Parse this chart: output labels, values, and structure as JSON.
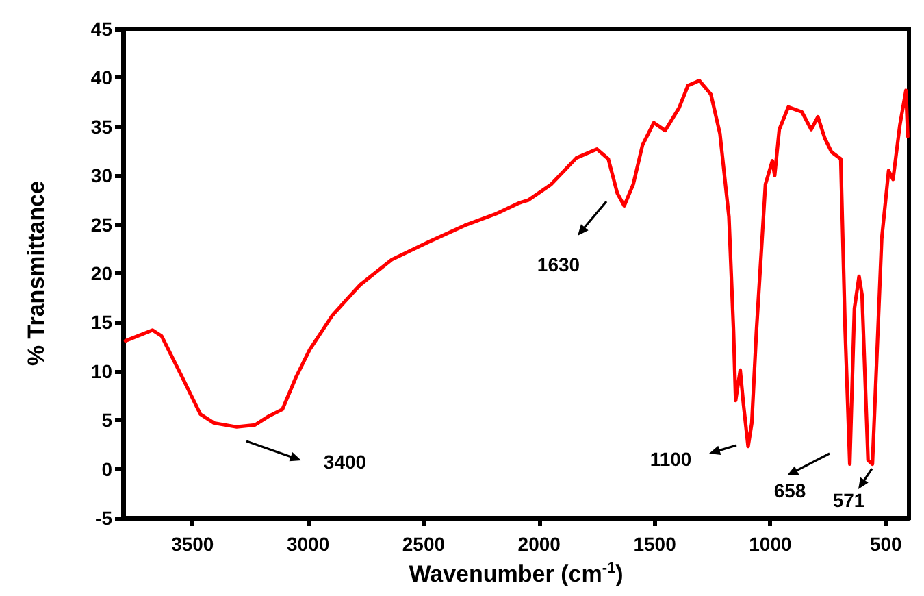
{
  "chart_data": {
    "type": "line",
    "xlabel": "Wavenumber (cm$^{-1}$)",
    "ylabel": "% Transmittance",
    "xlim": [
      3800,
      400
    ],
    "xticks": [
      3500,
      3000,
      2500,
      2000,
      1500,
      1000,
      500
    ],
    "ylim": [
      -5,
      45
    ],
    "yticks": [
      -5,
      0,
      5,
      10,
      15,
      20,
      25,
      30,
      35,
      40,
      45
    ],
    "grid": false,
    "marker": "none",
    "line_style": "solid",
    "annotations": [
      "3400",
      "1630",
      "1100",
      "658",
      "571"
    ],
    "series": [
      {
        "color": "#ff0000",
        "x": [
          3790,
          3673,
          3634,
          3545,
          3466,
          3407,
          3309,
          3230,
          3170,
          3111,
          3052,
          2993,
          2895,
          2776,
          2638,
          2480,
          2322,
          2185,
          2086,
          2046,
          1948,
          1839,
          1750,
          1701,
          1662,
          1632,
          1593,
          1553,
          1504,
          1455,
          1395,
          1356,
          1307,
          1257,
          1218,
          1179,
          1159,
          1150,
          1130,
          1116,
          1096,
          1080,
          1060,
          1021,
          991,
          981,
          961,
          922,
          863,
          823,
          794,
          764,
          735,
          695,
          676,
          656,
          636,
          616,
          603,
          577,
          558,
          518,
          488,
          469,
          439,
          413,
          405
        ],
        "values": [
          13.1,
          14.2,
          13.6,
          9.4,
          5.6,
          4.7,
          4.3,
          4.5,
          5.4,
          6.1,
          9.4,
          12.2,
          15.7,
          18.8,
          21.4,
          23.2,
          24.9,
          26.1,
          27.2,
          27.5,
          29.1,
          31.8,
          32.7,
          31.7,
          28.2,
          26.9,
          29.1,
          33.1,
          35.4,
          34.6,
          36.9,
          39.2,
          39.7,
          38.3,
          34.3,
          25.8,
          14.1,
          7.0,
          10.1,
          6.6,
          2.3,
          4.7,
          14.1,
          29.1,
          31.5,
          30.0,
          34.7,
          37.0,
          36.5,
          34.7,
          36.0,
          33.8,
          32.4,
          31.7,
          14.1,
          0.5,
          16.4,
          19.7,
          17.8,
          0.9,
          0.5,
          23.5,
          30.5,
          29.6,
          35.2,
          38.7,
          34.0
        ]
      }
    ]
  }
}
